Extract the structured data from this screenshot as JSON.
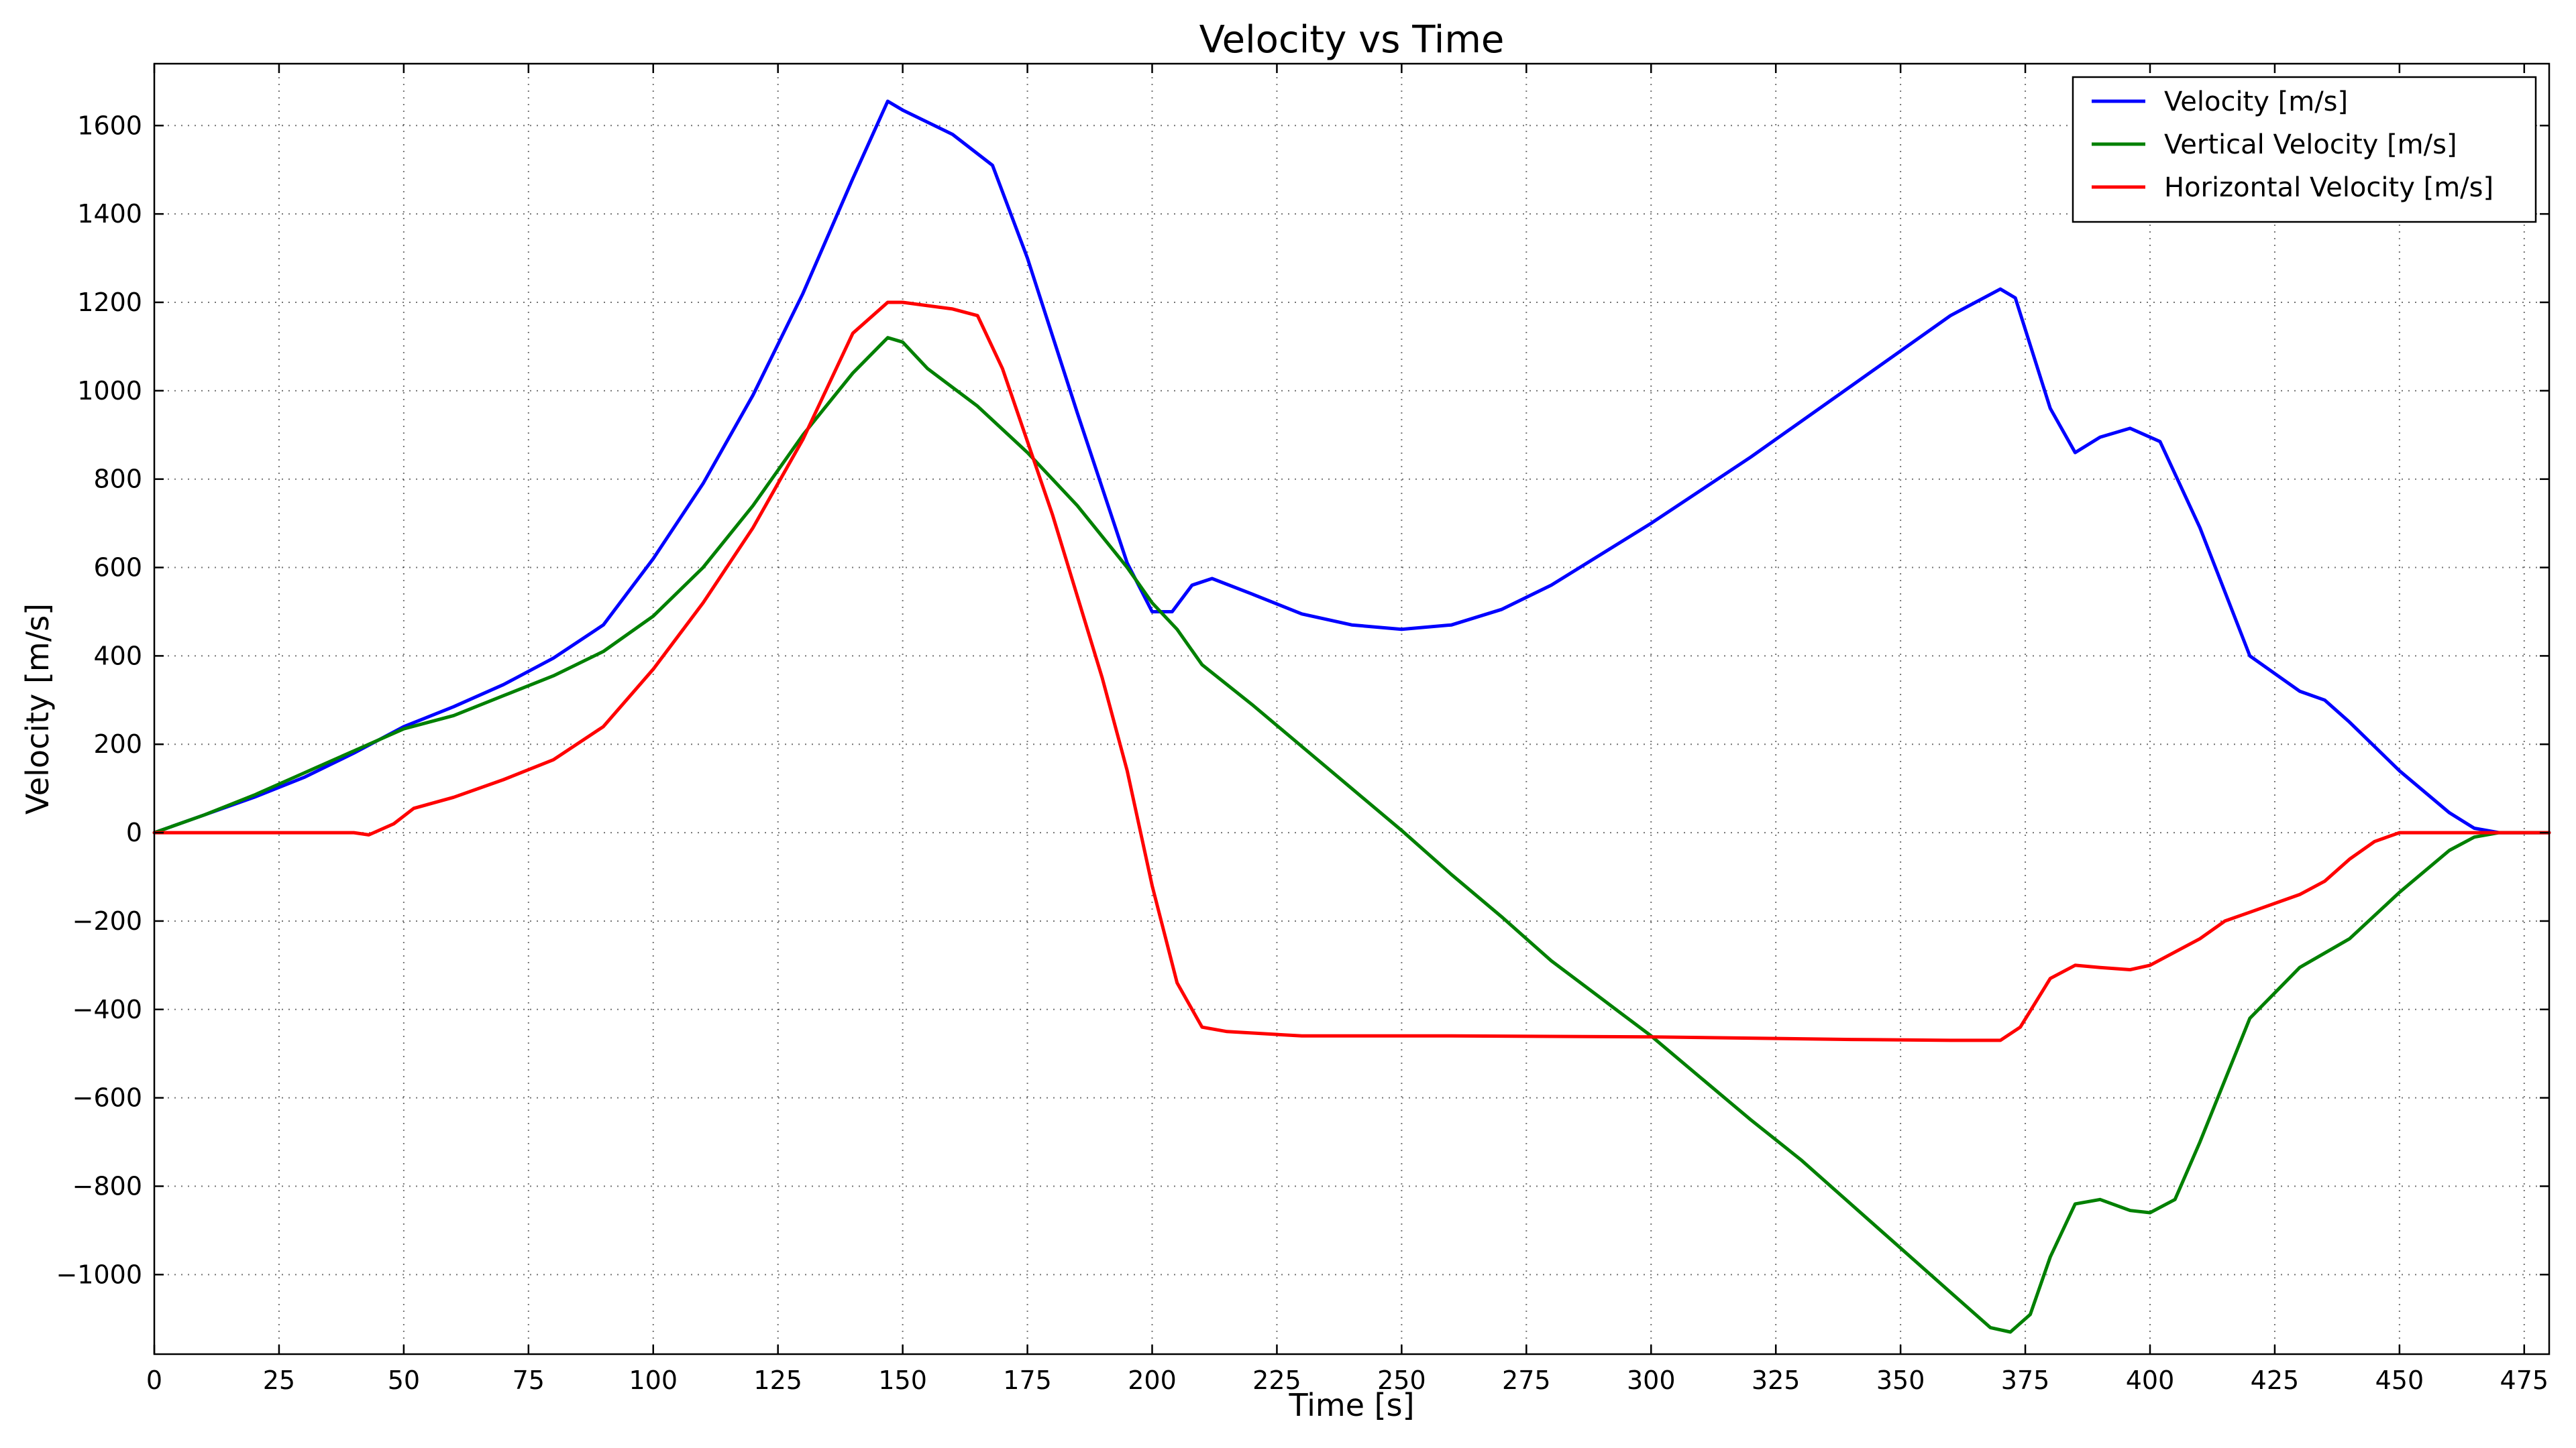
{
  "chart_data": {
    "type": "line",
    "title": "Velocity vs Time",
    "xlabel": "Time [s]",
    "ylabel": "Velocity [m/s]",
    "xlim": [
      0,
      480
    ],
    "ylim": [
      -1180,
      1740
    ],
    "xticks": [
      0,
      25,
      50,
      75,
      100,
      125,
      150,
      175,
      200,
      225,
      250,
      275,
      300,
      325,
      350,
      375,
      400,
      425,
      450,
      475
    ],
    "yticks": [
      -1000,
      -800,
      -600,
      -400,
      -200,
      0,
      200,
      400,
      600,
      800,
      1000,
      1200,
      1400,
      1600
    ],
    "grid": true,
    "legend_position": "top-right",
    "series": [
      {
        "name": "Velocity [m/s]",
        "color": "#0000ff",
        "x": [
          0,
          10,
          20,
          30,
          40,
          50,
          60,
          70,
          80,
          90,
          100,
          110,
          120,
          130,
          140,
          147,
          150,
          160,
          168,
          175,
          185,
          195,
          200,
          204,
          208,
          212,
          220,
          230,
          240,
          250,
          260,
          270,
          280,
          290,
          300,
          320,
          340,
          360,
          370,
          373,
          380,
          385,
          390,
          396,
          402,
          410,
          420,
          430,
          435,
          440,
          450,
          460,
          465,
          470,
          480
        ],
        "y": [
          0,
          40,
          80,
          125,
          180,
          240,
          285,
          335,
          395,
          470,
          620,
          790,
          990,
          1220,
          1480,
          1655,
          1635,
          1580,
          1510,
          1300,
          950,
          610,
          500,
          500,
          560,
          575,
          540,
          495,
          470,
          460,
          470,
          505,
          560,
          630,
          700,
          850,
          1010,
          1170,
          1230,
          1210,
          960,
          860,
          895,
          915,
          885,
          690,
          400,
          320,
          300,
          250,
          140,
          45,
          10,
          0,
          0
        ]
      },
      {
        "name": "Vertical Velocity [m/s]",
        "color": "#008000",
        "x": [
          0,
          10,
          20,
          30,
          40,
          50,
          60,
          70,
          80,
          90,
          100,
          110,
          120,
          130,
          140,
          147,
          150,
          155,
          165,
          175,
          185,
          195,
          200,
          205,
          210,
          220,
          230,
          240,
          250,
          260,
          270,
          280,
          290,
          300,
          310,
          320,
          330,
          340,
          350,
          360,
          368,
          372,
          376,
          380,
          385,
          390,
          396,
          400,
          405,
          410,
          420,
          430,
          440,
          450,
          460,
          465,
          470,
          480
        ],
        "y": [
          0,
          40,
          85,
          135,
          185,
          235,
          265,
          310,
          355,
          410,
          490,
          600,
          740,
          900,
          1040,
          1120,
          1110,
          1050,
          965,
          860,
          740,
          600,
          520,
          460,
          380,
          290,
          195,
          100,
          5,
          -95,
          -190,
          -290,
          -375,
          -460,
          -555,
          -650,
          -740,
          -840,
          -940,
          -1040,
          -1120,
          -1130,
          -1090,
          -960,
          -840,
          -830,
          -855,
          -860,
          -830,
          -700,
          -420,
          -305,
          -240,
          -135,
          -40,
          -10,
          0,
          0
        ]
      },
      {
        "name": "Horizontal Velocity [m/s]",
        "color": "#ff0000",
        "x": [
          0,
          20,
          40,
          43,
          48,
          52,
          60,
          70,
          80,
          90,
          100,
          110,
          120,
          130,
          140,
          147,
          150,
          160,
          165,
          170,
          180,
          190,
          195,
          200,
          205,
          210,
          215,
          230,
          260,
          300,
          340,
          360,
          370,
          374,
          380,
          385,
          390,
          396,
          400,
          410,
          415,
          420,
          430,
          435,
          440,
          445,
          450,
          460,
          470,
          480
        ],
        "y": [
          0,
          0,
          0,
          -5,
          20,
          55,
          80,
          120,
          165,
          240,
          370,
          520,
          690,
          890,
          1130,
          1200,
          1200,
          1185,
          1170,
          1050,
          720,
          350,
          140,
          -120,
          -340,
          -440,
          -450,
          -460,
          -460,
          -462,
          -468,
          -470,
          -470,
          -440,
          -330,
          -300,
          -305,
          -310,
          -300,
          -240,
          -200,
          -180,
          -140,
          -110,
          -60,
          -20,
          0,
          0,
          0,
          0
        ]
      }
    ]
  }
}
